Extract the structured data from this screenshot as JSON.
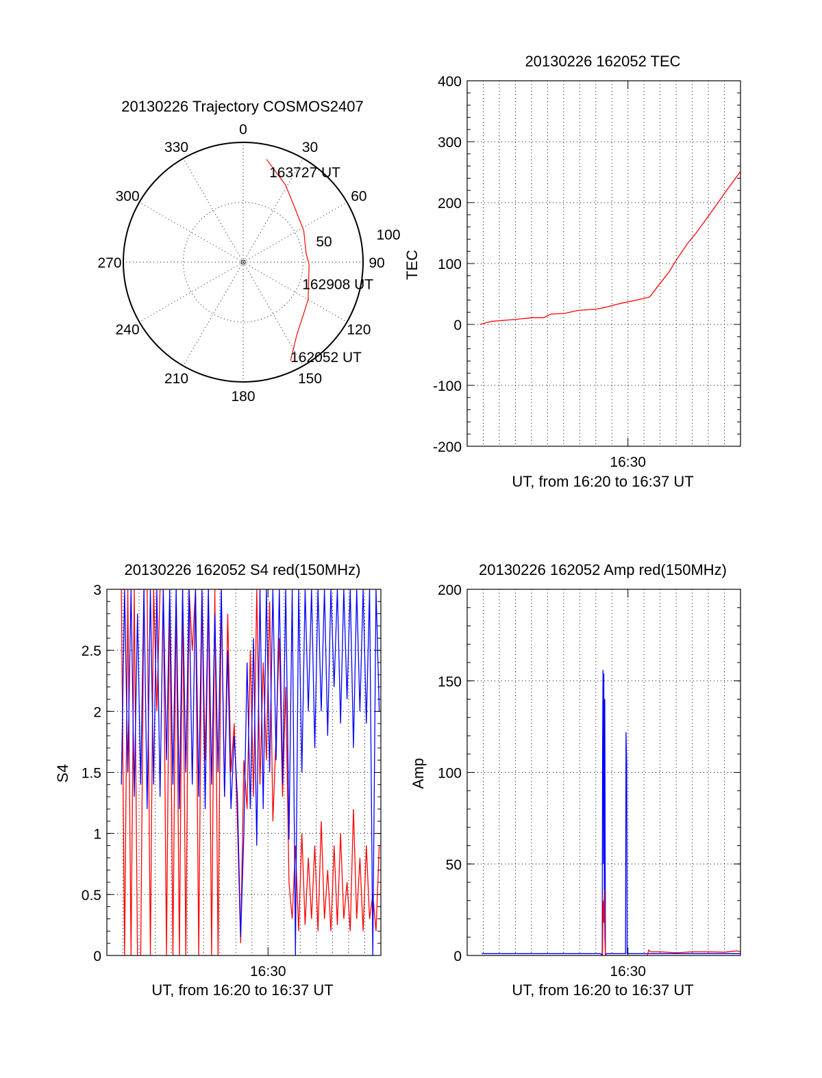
{
  "chart_data": [
    {
      "type": "polar",
      "title": "20130226 Trajectory COSMOS2407",
      "angle_labels": [
        "0",
        "30",
        "60",
        "90",
        "120",
        "150",
        "180",
        "210",
        "240",
        "270",
        "300",
        "330"
      ],
      "radial_labels": [
        "50",
        "100"
      ],
      "rlim": [
        0,
        100
      ],
      "series_color": "#ff0000",
      "trajectory_az_r": [
        [
          154.4,
          91.4
        ],
        [
          143.9,
          75.7
        ],
        [
          124.8,
          64
        ],
        [
          119.6,
          62.4
        ],
        [
          92,
          55
        ],
        [
          82,
          53
        ],
        [
          62.4,
          57
        ],
        [
          43.2,
          62.7
        ],
        [
          28.7,
          73.5
        ],
        [
          12.8,
          88
        ]
      ],
      "annotations": [
        {
          "text": "163727 UT",
          "az": 12.8,
          "r": 88
        },
        {
          "text": "162908 UT",
          "az": 92,
          "r": 55
        },
        {
          "text": "162052 UT",
          "az": 154.4,
          "r": 91.4
        }
      ]
    },
    {
      "type": "line",
      "title": "20130226 162052 TEC",
      "xlabel": "UT, from 16:20 to 16:37 UT",
      "ylabel": "TEC",
      "x_unit": "minutes after 16:20",
      "xlim": [
        0,
        17
      ],
      "ylim": [
        -200,
        400
      ],
      "yticks": [
        -200,
        -100,
        0,
        100,
        200,
        300,
        400
      ],
      "y_minor": 20,
      "xticks": [
        {
          "value": 10,
          "label": "16:30"
        }
      ],
      "grid": true,
      "series": [
        {
          "name": "TEC",
          "color": "#ff0000",
          "points": [
            [
              0.81,
              0
            ],
            [
              1.5,
              5
            ],
            [
              2.9,
              8
            ],
            [
              4.06,
              11
            ],
            [
              4.77,
              11
            ],
            [
              5.2,
              17
            ],
            [
              6.04,
              18
            ],
            [
              6.9,
              23
            ],
            [
              8.0,
              25
            ],
            [
              8.6,
              28
            ],
            [
              9.3,
              33
            ],
            [
              10,
              37
            ],
            [
              10.7,
              41
            ],
            [
              11.35,
              45
            ],
            [
              11.84,
              62
            ],
            [
              12.55,
              86
            ],
            [
              12.97,
              104
            ],
            [
              13.68,
              132
            ],
            [
              14.24,
              150
            ],
            [
              14.95,
              176
            ],
            [
              15.66,
              202
            ],
            [
              16.08,
              218
            ],
            [
              17.0,
              251
            ]
          ]
        }
      ]
    },
    {
      "type": "line",
      "title": "20130226 162052 S4 red(150MHz)",
      "xlabel": "UT, from 16:20 to 16:37 UT",
      "ylabel": "S4",
      "x_unit": "minutes after 16:20",
      "xlim": [
        0,
        17
      ],
      "ylim": [
        0,
        3
      ],
      "yticks": [
        0,
        0.5,
        1,
        1.5,
        2,
        2.5,
        3
      ],
      "ytick_labels": [
        "0",
        "0.5",
        "1",
        "1.5",
        "2",
        "2.5",
        "3"
      ],
      "y_minor": 0.1,
      "xticks": [
        {
          "value": 10,
          "label": "16:30"
        }
      ],
      "grid": true,
      "sample_start": 0.9,
      "sample_step": 0.2,
      "series": [
        {
          "name": "red",
          "color": "#ff0000",
          "values": [
            3,
            0,
            3,
            0,
            3,
            0,
            0,
            3,
            3,
            0,
            3,
            2,
            3,
            3,
            0,
            3,
            0,
            3,
            0,
            3,
            0,
            3,
            2.5,
            3,
            0,
            3,
            1.6,
            3,
            0,
            3,
            0,
            3,
            1.3,
            2.8,
            1.5,
            1.9,
            1.1,
            0.1,
            1.6,
            1.2,
            2.5,
            1.3,
            3,
            1.4,
            2.4,
            1.6,
            2.9,
            1.1,
            1.8,
            2.6,
            1.3,
            2.2,
            0.6,
            0.3,
            0.9,
            0.2,
            1.0,
            0.25,
            0.8,
            0.3,
            0.9,
            0.2,
            1.1,
            0.3,
            0.7,
            0.2,
            0.9,
            0.25,
            1.0,
            0.3,
            0.6,
            0.2,
            1.2,
            0.3,
            0.8,
            0.2,
            0.9,
            0.3,
            0.5,
            0.2,
            0.9
          ]
        },
        {
          "name": "blue",
          "color": "#0000ff",
          "values": [
            1.4,
            3,
            1.5,
            3,
            1.3,
            2.8,
            1.4,
            3,
            1.2,
            3,
            1.4,
            3,
            1.3,
            3,
            1.6,
            3,
            1.4,
            3,
            1.2,
            3,
            1.5,
            3,
            1.4,
            3,
            1.3,
            3,
            1.2,
            3,
            1.4,
            2.8,
            1.5,
            3,
            1.3,
            2.5,
            1.2,
            1.8,
            1.3,
            0.15,
            1.0,
            2.4,
            1.2,
            2.6,
            0.9,
            3,
            1.2,
            3,
            1.5,
            3,
            1.6,
            3,
            1.4,
            3,
            0.95,
            3,
            0,
            3,
            1.5,
            3,
            2.0,
            3,
            1.7,
            3,
            2.0,
            3,
            1.8,
            3,
            2.2,
            3,
            1.9,
            3,
            2.1,
            3,
            1.7,
            3,
            2.0,
            3,
            1.9,
            3,
            0,
            3,
            2.0
          ]
        }
      ]
    },
    {
      "type": "line",
      "title": "20130226 162052 Amp red(150MHz)",
      "xlabel": "UT, from 16:20 to 16:37 UT",
      "ylabel": "Amp",
      "x_unit": "minutes after 16:20",
      "xlim": [
        0,
        17
      ],
      "ylim": [
        0,
        200
      ],
      "yticks": [
        0,
        50,
        100,
        150,
        200
      ],
      "y_minor": 10,
      "xticks": [
        {
          "value": 10,
          "label": "16:30"
        }
      ],
      "grid": true,
      "series": [
        {
          "name": "blue",
          "color": "#0000ff",
          "points": [
            [
              0.9,
              1
            ],
            [
              8.3,
              1
            ],
            [
              8.4,
              0
            ],
            [
              8.42,
              110
            ],
            [
              8.45,
              156
            ],
            [
              8.48,
              50
            ],
            [
              8.5,
              154
            ],
            [
              8.53,
              30
            ],
            [
              8.56,
              140
            ],
            [
              8.6,
              0
            ],
            [
              8.65,
              1
            ],
            [
              9.85,
              1
            ],
            [
              9.88,
              122
            ],
            [
              9.92,
              105
            ],
            [
              9.95,
              1
            ],
            [
              17,
              1
            ]
          ]
        },
        {
          "name": "red",
          "color": "#ff0000",
          "points": [
            [
              8.42,
              0
            ],
            [
              8.45,
              30
            ],
            [
              8.5,
              18
            ],
            [
              8.53,
              36
            ],
            [
              8.56,
              10
            ],
            [
              8.6,
              0
            ],
            [
              11.2,
              0
            ],
            [
              11.3,
              3
            ],
            [
              11.4,
              2
            ],
            [
              12,
              2
            ],
            [
              13,
              1.5
            ],
            [
              14,
              2
            ],
            [
              15,
              2
            ],
            [
              16,
              1.8
            ],
            [
              16.8,
              2.5
            ],
            [
              17,
              2
            ]
          ]
        }
      ]
    }
  ]
}
